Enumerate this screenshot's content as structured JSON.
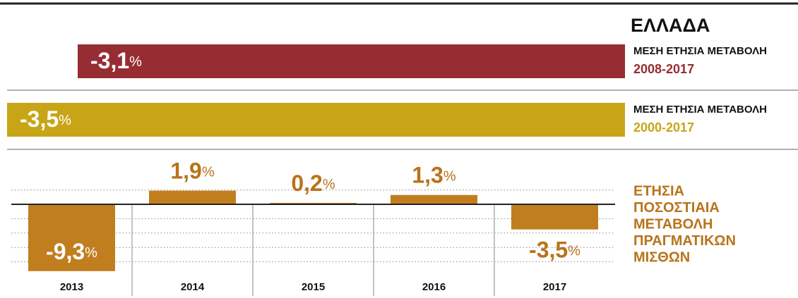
{
  "chart_data": [
    {
      "type": "hbar",
      "title": "ΕΛΛΑΔΑ",
      "unit": "%",
      "series": [
        {
          "name": "ΜΕΣΗ ΕΤΗΣΙΑ ΜΕΤΑΒΟΛΗ",
          "period": "2008-2017",
          "color": "#962d33",
          "values": [
            -3.1
          ],
          "value_labels": [
            "-3,1"
          ]
        },
        {
          "name": "ΜΕΣΗ ΕΤΗΣΙΑ ΜΕΤΑΒΟΛΗ",
          "period": "2000-2017",
          "color": "#c8a516",
          "values": [
            -3.5
          ],
          "value_labels": [
            "-3,5"
          ]
        }
      ]
    },
    {
      "type": "bar",
      "title_lines": [
        "ΕΤΗΣΙΑ",
        "ΠΟΣΟΣΤΙΑΙΑ",
        "ΜΕΤΑΒΟΛΗ",
        "ΠΡΑΓΜΑΤΙΚΩΝ",
        "ΜΙΣΘΩΝ"
      ],
      "unit": "%",
      "categories": [
        "2013",
        "2014",
        "2015",
        "2016",
        "2017"
      ],
      "values": [
        -9.3,
        1.9,
        0.2,
        1.3,
        -3.5
      ],
      "value_labels": [
        "-9,3",
        "1,9",
        "0,2",
        "1,3",
        "-3,5"
      ],
      "color": "#c17e1e",
      "label_color": "#b8731b",
      "ylim": [
        -10,
        3
      ],
      "yticks": [
        2,
        -2,
        -4,
        -6,
        -8
      ],
      "grid": true
    }
  ]
}
